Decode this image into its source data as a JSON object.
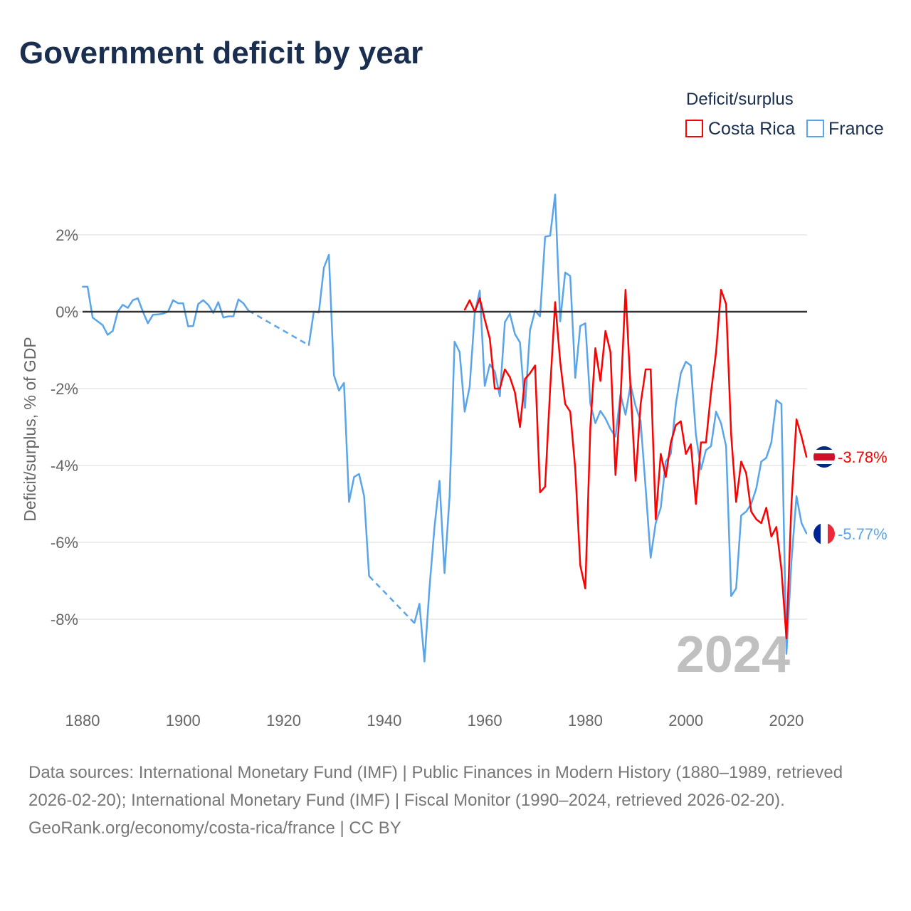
{
  "title": "Government deficit by year",
  "legend": {
    "title": "Deficit/surplus",
    "items": [
      {
        "name": "Costa Rica",
        "color": "#ff0000"
      },
      {
        "name": "France",
        "color": "#5aa5ea"
      }
    ]
  },
  "year_label": "2024",
  "end_labels": {
    "costa_rica": "-3.78%",
    "france": "-5.77%"
  },
  "source": "Data sources: International Monetary Fund (IMF) | Public Finances in Modern History (1880–1989, retrieved 2026-02-20); International Monetary Fund (IMF) | Fiscal Monitor (1990–2024, retrieved 2026-02-20).",
  "credit": "GeoRank.org/economy/costa-rica/france | CC BY",
  "chart_data": {
    "type": "line",
    "title": "Government deficit by year",
    "xlabel": "",
    "ylabel": "Deficit/surplus, % of GDP",
    "xlim": [
      1880,
      2024
    ],
    "ylim": [
      -10,
      3.2
    ],
    "xticks": [
      {
        "v": 1880,
        "label": "1880"
      },
      {
        "v": 1900,
        "label": "1900"
      },
      {
        "v": 1920,
        "label": "1920"
      },
      {
        "v": 1940,
        "label": "1940"
      },
      {
        "v": 1960,
        "label": "1960"
      },
      {
        "v": 1980,
        "label": "1980"
      },
      {
        "v": 2000,
        "label": "2000"
      },
      {
        "v": 2020,
        "label": "2020"
      }
    ],
    "yticks": [
      {
        "v": 2,
        "label": "2%"
      },
      {
        "v": 0,
        "label": "0%"
      },
      {
        "v": -2,
        "label": "-2%"
      },
      {
        "v": -4,
        "label": "-4%"
      },
      {
        "v": -6,
        "label": "-6%"
      },
      {
        "v": -8,
        "label": "-8%"
      }
    ],
    "series": [
      {
        "name": "France",
        "color": "#5aa5ea",
        "start": 1880,
        "values": [
          0.65,
          0.65,
          -0.15,
          -0.25,
          -0.35,
          -0.6,
          -0.5,
          0,
          0.18,
          0.1,
          0.3,
          0.35,
          0,
          -0.3,
          -0.08,
          -0.07,
          -0.05,
          0,
          0.3,
          0.22,
          0.22,
          -0.38,
          -0.37,
          0.2,
          0.3,
          0.18,
          -0.03,
          0.25,
          -0.15,
          -0.12,
          -0.12,
          0.32,
          0.22,
          0.03,
          null,
          null,
          null,
          null,
          null,
          null,
          null,
          null,
          null,
          null,
          null,
          -0.87,
          0,
          -0.02,
          1.15,
          1.48,
          -1.65,
          -2.05,
          -1.85,
          -4.95,
          -4.3,
          -4.22,
          -4.8,
          -6.88,
          null,
          null,
          null,
          null,
          null,
          null,
          null,
          null,
          -8.1,
          -7.6,
          -9.1,
          -7.2,
          -5.6,
          -4.4,
          -6.8,
          -4.8,
          -0.78,
          -1.05,
          -2.6,
          -1.95,
          -0.05,
          0.55,
          -1.93,
          -1.37,
          -1.55,
          -2.2,
          -0.27,
          -0.05,
          -0.58,
          -0.8,
          -2.5,
          -0.48,
          0.03,
          -0.12,
          1.95,
          1.98,
          3.05,
          -0.25,
          1.02,
          0.93,
          -1.72,
          -0.37,
          -0.3,
          -2.4,
          -2.9,
          -2.58,
          -2.78,
          -3.05,
          -3.25,
          -2.15,
          -2.68,
          -1.9,
          -2.45,
          -2.85,
          -4.6,
          -6.4,
          -5.5,
          -5.1,
          -3.9,
          -3.7,
          -2.4,
          -1.6,
          -1.3,
          -1.4,
          -3.2,
          -4.1,
          -3.6,
          -3.5,
          -2.6,
          -2.9,
          -3.5,
          -7.4,
          -7.2,
          -5.3,
          -5.2,
          -5.0,
          -4.6,
          -3.9,
          -3.8,
          -3.4,
          -2.3,
          -2.4,
          -8.9,
          -6.5,
          -4.8,
          -5.5,
          -5.77
        ]
      },
      {
        "name": "Costa Rica",
        "color": "#ff0000",
        "start": 1956,
        "values": [
          0.05,
          0.3,
          0,
          0.35,
          -0.2,
          -0.7,
          -2.0,
          -2.0,
          -1.5,
          -1.7,
          -2.1,
          -3.0,
          -1.75,
          -1.6,
          -1.4,
          -4.7,
          -4.55,
          -2.0,
          0.25,
          -1.3,
          -2.4,
          -2.6,
          -4.1,
          -6.6,
          -7.2,
          -3.0,
          -0.95,
          -1.8,
          -0.5,
          -1.05,
          -4.25,
          -2.3,
          0.57,
          -2.0,
          -4.4,
          -2.4,
          -1.5,
          -1.5,
          -5.4,
          -3.7,
          -4.3,
          -3.4,
          -2.95,
          -2.85,
          -3.7,
          -3.45,
          -5.0,
          -3.4,
          -3.4,
          -2.1,
          -1.05,
          0.57,
          0.2,
          -3.2,
          -4.95,
          -3.9,
          -4.2,
          -5.2,
          -5.4,
          -5.5,
          -5.1,
          -5.85,
          -5.6,
          -6.7,
          -8.5,
          -5.0,
          -2.8,
          -3.25,
          -3.78
        ]
      }
    ]
  }
}
